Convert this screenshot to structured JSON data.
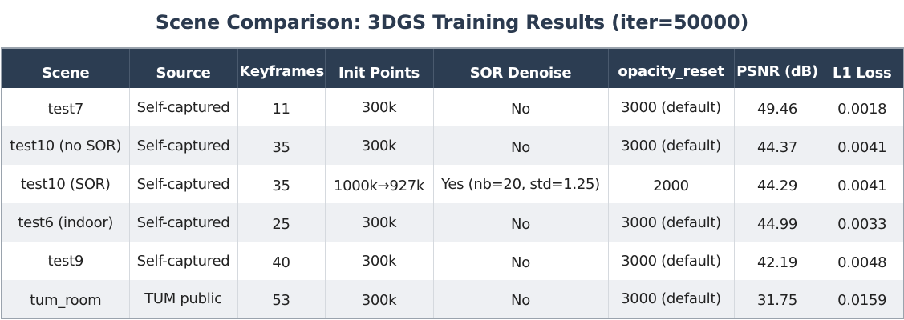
{
  "title": "Scene Comparison: 3DGS Training Results (iter=50000)",
  "columns": [
    "Scene",
    "Source",
    "Keyframes",
    "Init Points",
    "SOR Denoise",
    "opacity_reset",
    "PSNR (dB)",
    "L1 Loss"
  ],
  "rows": [
    [
      "test7",
      "Self-captured",
      "11",
      "300k",
      "No",
      "3000 (default)",
      "49.46",
      "0.0018"
    ],
    [
      "test10 (no SOR)",
      "Self-captured",
      "35",
      "300k",
      "No",
      "3000 (default)",
      "44.37",
      "0.0041"
    ],
    [
      "test10 (SOR)",
      "Self-captured",
      "35",
      "1000k→927k",
      "Yes (nb=20, std=1.25)",
      "2000",
      "44.29",
      "0.0041"
    ],
    [
      "test6 (indoor)",
      "Self-captured",
      "25",
      "300k",
      "No",
      "3000 (default)",
      "44.99",
      "0.0033"
    ],
    [
      "test9",
      "Self-captured",
      "40",
      "300k",
      "No",
      "3000 (default)",
      "42.19",
      "0.0048"
    ],
    [
      "tum_room",
      "TUM public",
      "53",
      "300k",
      "No",
      "3000 (default)",
      "31.75",
      "0.0159"
    ]
  ]
}
